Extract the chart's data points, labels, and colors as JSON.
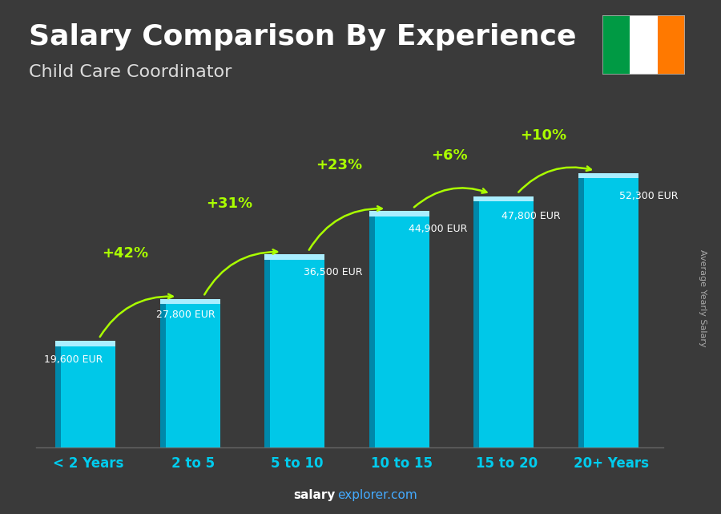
{
  "title": "Salary Comparison By Experience",
  "subtitle": "Child Care Coordinator",
  "categories": [
    "< 2 Years",
    "2 to 5",
    "5 to 10",
    "10 to 15",
    "15 to 20",
    "20+ Years"
  ],
  "values": [
    19600,
    27800,
    36500,
    44900,
    47800,
    52300
  ],
  "value_labels": [
    "19,600 EUR",
    "27,800 EUR",
    "36,500 EUR",
    "44,900 EUR",
    "47,800 EUR",
    "52,300 EUR"
  ],
  "pct_labels": [
    "+42%",
    "+31%",
    "+23%",
    "+6%",
    "+10%"
  ],
  "bar_front_color": "#00c8e8",
  "bar_side_color": "#0088aa",
  "bar_top_color": "#aaeeff",
  "bg_color": "#3a3a3a",
  "text_color": "#ffffff",
  "title_fontsize": 26,
  "subtitle_fontsize": 16,
  "ylabel": "Average Yearly Salary",
  "pct_color": "#aaff00",
  "arrow_color": "#aaff00",
  "value_label_color": "#ffffff",
  "xticklabel_color": "#00ccee",
  "flag_colors": [
    "#009A44",
    "#FFFFFF",
    "#FF7900"
  ],
  "footer_salary_color": "#ffffff",
  "footer_explorer_color": "#44aaff"
}
